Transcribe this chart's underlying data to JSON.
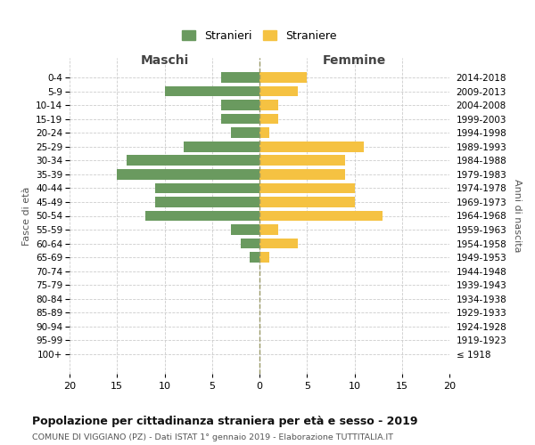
{
  "age_groups": [
    "0-4",
    "5-9",
    "10-14",
    "15-19",
    "20-24",
    "25-29",
    "30-34",
    "35-39",
    "40-44",
    "45-49",
    "50-54",
    "55-59",
    "60-64",
    "65-69",
    "70-74",
    "75-79",
    "80-84",
    "85-89",
    "90-94",
    "95-99",
    "100+"
  ],
  "birth_years": [
    "2014-2018",
    "2009-2013",
    "2004-2008",
    "1999-2003",
    "1994-1998",
    "1989-1993",
    "1984-1988",
    "1979-1983",
    "1974-1978",
    "1969-1973",
    "1964-1968",
    "1959-1963",
    "1954-1958",
    "1949-1953",
    "1944-1948",
    "1939-1943",
    "1934-1938",
    "1929-1933",
    "1924-1928",
    "1919-1923",
    "≤ 1918"
  ],
  "maschi": [
    4,
    10,
    4,
    4,
    3,
    8,
    14,
    15,
    11,
    11,
    12,
    3,
    2,
    1,
    0,
    0,
    0,
    0,
    0,
    0,
    0
  ],
  "femmine": [
    5,
    4,
    2,
    2,
    1,
    11,
    9,
    9,
    10,
    10,
    13,
    2,
    4,
    1,
    0,
    0,
    0,
    0,
    0,
    0,
    0
  ],
  "color_maschi": "#6a9a5f",
  "color_femmine": "#f5c242",
  "title": "Popolazione per cittadinanza straniera per età e sesso - 2019",
  "subtitle": "COMUNE DI VIGGIANO (PZ) - Dati ISTAT 1° gennaio 2019 - Elaborazione TUTTITALIA.IT",
  "xlabel_left": "Maschi",
  "xlabel_right": "Femmine",
  "ylabel_left": "Fasce di età",
  "ylabel_right": "Anni di nascita",
  "legend_maschi": "Stranieri",
  "legend_femmine": "Straniere",
  "xlim": 20,
  "background_color": "#ffffff",
  "grid_color": "#cccccc"
}
